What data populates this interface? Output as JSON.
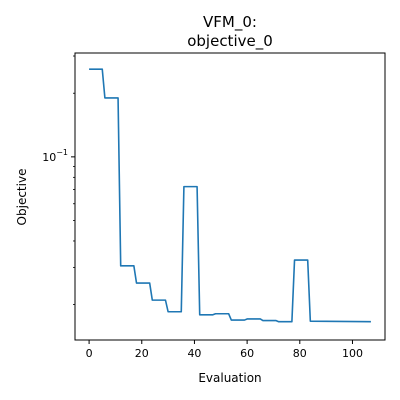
{
  "chart_data": {
    "type": "line",
    "title_lines": [
      "VFM_0:",
      "objective_0"
    ],
    "xlabel": "Evaluation",
    "ylabel": "Objective",
    "xscale": "linear",
    "yscale": "log",
    "xlim": [
      -5.35,
      112.35
    ],
    "ylim": [
      0.0136,
      0.31
    ],
    "xticks": [
      0,
      20,
      40,
      60,
      80,
      100
    ],
    "xtick_labels": [
      "0",
      "20",
      "40",
      "60",
      "80",
      "100"
    ],
    "yticks_major": [
      0.1
    ],
    "ytick_labels": [
      {
        "base": "10",
        "exp": "−1"
      }
    ],
    "grid": false,
    "series": [
      {
        "color": "#1f77b4",
        "x": [
          0,
          5,
          6,
          11,
          12,
          17,
          18,
          23,
          24,
          29,
          30,
          35,
          36,
          41,
          42,
          47,
          48,
          53,
          54,
          59,
          60,
          65,
          66,
          71,
          72,
          77,
          78,
          83,
          84,
          107
        ],
        "y": [
          0.26,
          0.26,
          0.19,
          0.19,
          0.0305,
          0.0305,
          0.0253,
          0.0253,
          0.021,
          0.021,
          0.0185,
          0.0185,
          0.0723,
          0.0723,
          0.0179,
          0.0179,
          0.0181,
          0.0181,
          0.0169,
          0.0169,
          0.0171,
          0.0171,
          0.0168,
          0.0168,
          0.0166,
          0.0166,
          0.0325,
          0.0325,
          0.0167,
          0.0166
        ]
      }
    ]
  }
}
